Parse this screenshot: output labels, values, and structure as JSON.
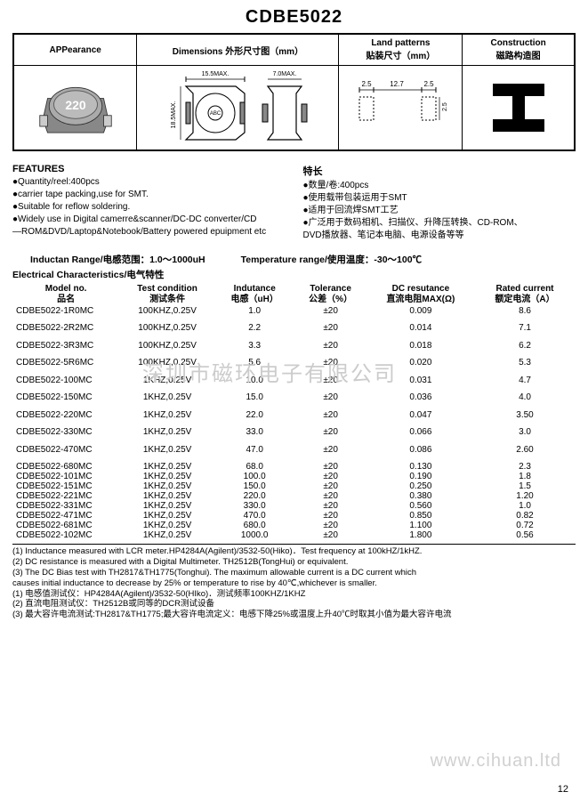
{
  "title": "CDBE5022",
  "watermark1": "深圳市磁环电子有限公司",
  "watermark2": "www.cihuan.ltd",
  "page_number": "12",
  "top_headers": {
    "appearance": "APPearance",
    "dimensions": "Dimensions 外形尺寸图（mm）",
    "land": "Land patterns\n贴装尺寸（mm）",
    "construction": "Construction\n磁路构造图"
  },
  "appearance_label": "220",
  "dims": {
    "w": "15.5MAX.",
    "h": "18.5MAX.",
    "t": "7.0MAX.",
    "abc": "ABC"
  },
  "land": {
    "a": "2.5",
    "b": "12.7",
    "c": "2.5",
    "d": "2.5"
  },
  "features": {
    "heading_en": "FEATURES",
    "heading_cn": "特长",
    "en": [
      "●Quantity/reel:400pcs",
      "●carrier tape packing,use for SMT.",
      "●Suitable for reflow soldering.",
      "●Widely use in Digital camerre&scanner/DC-DC converter/CD",
      "—ROM&DVD/Laptop&Notebook/Battery powered epuipment etc"
    ],
    "cn": [
      "●数量/卷:400pcs",
      "●使用载带包装运用于SMT",
      "●适用于回流焊SMT工艺",
      "●广泛用于数码相机、扫描仪、升降压转换、CD-ROM、",
      "DVD播放器、笔记本电脑、电源设备等等"
    ]
  },
  "range": {
    "inductance": "Inductan Range/电感范围：1.0～1000uH",
    "temperature": "Temperature range/使用温度：-30～100℃"
  },
  "elec_heading": "Electrical Characteristics/电气特性",
  "columns": [
    {
      "en": "Model no.",
      "cn": "品名"
    },
    {
      "en": "Test condition",
      "cn": "测试条件"
    },
    {
      "en": "Indutance",
      "cn": "电感（uH）"
    },
    {
      "en": "Tolerance",
      "cn": "公差（%）"
    },
    {
      "en": "DC resutance",
      "cn": "直流电阻MAX(Ω)"
    },
    {
      "en": "Rated current",
      "cn": "额定电流（A）"
    }
  ],
  "rows_spaced": [
    [
      "CDBE5022-1R0MC",
      "100KHZ,0.25V",
      "1.0",
      "±20",
      "0.009",
      "8.6"
    ],
    [
      "CDBE5022-2R2MC",
      "100KHZ,0.25V",
      "2.2",
      "±20",
      "0.014",
      "7.1"
    ],
    [
      "CDBE5022-3R3MC",
      "100KHZ,0.25V",
      "3.3",
      "±20",
      "0.018",
      "6.2"
    ],
    [
      "CDBE5022-5R6MC",
      "100KHZ,0.25V",
      "5.6",
      "±20",
      "0.020",
      "5.3"
    ],
    [
      "CDBE5022-100MC",
      "1KHZ,0.25V",
      "10.0",
      "±20",
      "0.031",
      "4.7"
    ],
    [
      "CDBE5022-150MC",
      "1KHZ,0.25V",
      "15.0",
      "±20",
      "0.036",
      "4.0"
    ],
    [
      "CDBE5022-220MC",
      "1KHZ,0.25V",
      "22.0",
      "±20",
      "0.047",
      "3.50"
    ],
    [
      "CDBE5022-330MC",
      "1KHZ,0.25V",
      "33.0",
      "±20",
      "0.066",
      "3.0"
    ],
    [
      "CDBE5022-470MC",
      "1KHZ,0.25V",
      "47.0",
      "±20",
      "0.086",
      "2.60"
    ]
  ],
  "rows_tight": [
    [
      "CDBE5022-680MC",
      "1KHZ,0.25V",
      "68.0",
      "±20",
      "0.130",
      "2.3"
    ],
    [
      "CDBE5022-101MC",
      "1KHZ,0.25V",
      "100.0",
      "±20",
      "0.190",
      "1.8"
    ],
    [
      "CDBE5022-151MC",
      "1KHZ,0.25V",
      "150.0",
      "±20",
      "0.250",
      "1.5"
    ],
    [
      "CDBE5022-221MC",
      "1KHZ,0.25V",
      "220.0",
      "±20",
      "0.380",
      "1.20"
    ],
    [
      "CDBE5022-331MC",
      "1KHZ,0.25V",
      "330.0",
      "±20",
      "0.560",
      "1.0"
    ],
    [
      "CDBE5022-471MC",
      "1KHZ,0.25V",
      "470.0",
      "±20",
      "0.850",
      "0.82"
    ],
    [
      "CDBE5022-681MC",
      "1KHZ,0.25V",
      "680.0",
      "±20",
      "1.100",
      "0.72"
    ],
    [
      "CDBE5022-102MC",
      "1KHZ,0.25V",
      "1000.0",
      "±20",
      "1.800",
      "0.56"
    ]
  ],
  "footnotes": [
    "(1) Inductance measured with LCR meter.HP4284A(Agilent)/3532-50(Hiko)．Test frequency at 100kHZ/1kHZ.",
    "(2) DC resistance is measured with a Digital Multimeter.  TH2512B(TongHui) or equivalent.",
    "(3) The DC Bias test with TH2817&TH1775(Tonghui). The maximum allowable current is a DC current which",
    "    causes initial inductance to decrease by 25% or temperature to rise by 40℃,whichever is smaller.",
    "(1) 电感值测试仪：HP4284A(Agilent)/3532-50(HIko)．测试频率100KHZ/1KHZ",
    "(2) 直流电阻测试仪：TH2512B或同等的DCR测试设备",
    "(3) 最大容许电流测试:TH2817&TH1775;最大容许电流定义：电感下降25%或温度上升40℃时取其小值为最大容许电流"
  ],
  "colors": {
    "text": "#000000",
    "background": "#ffffff",
    "watermark": "#cccccc",
    "inductor_body": "#9a9a9a",
    "inductor_dark": "#555555"
  }
}
